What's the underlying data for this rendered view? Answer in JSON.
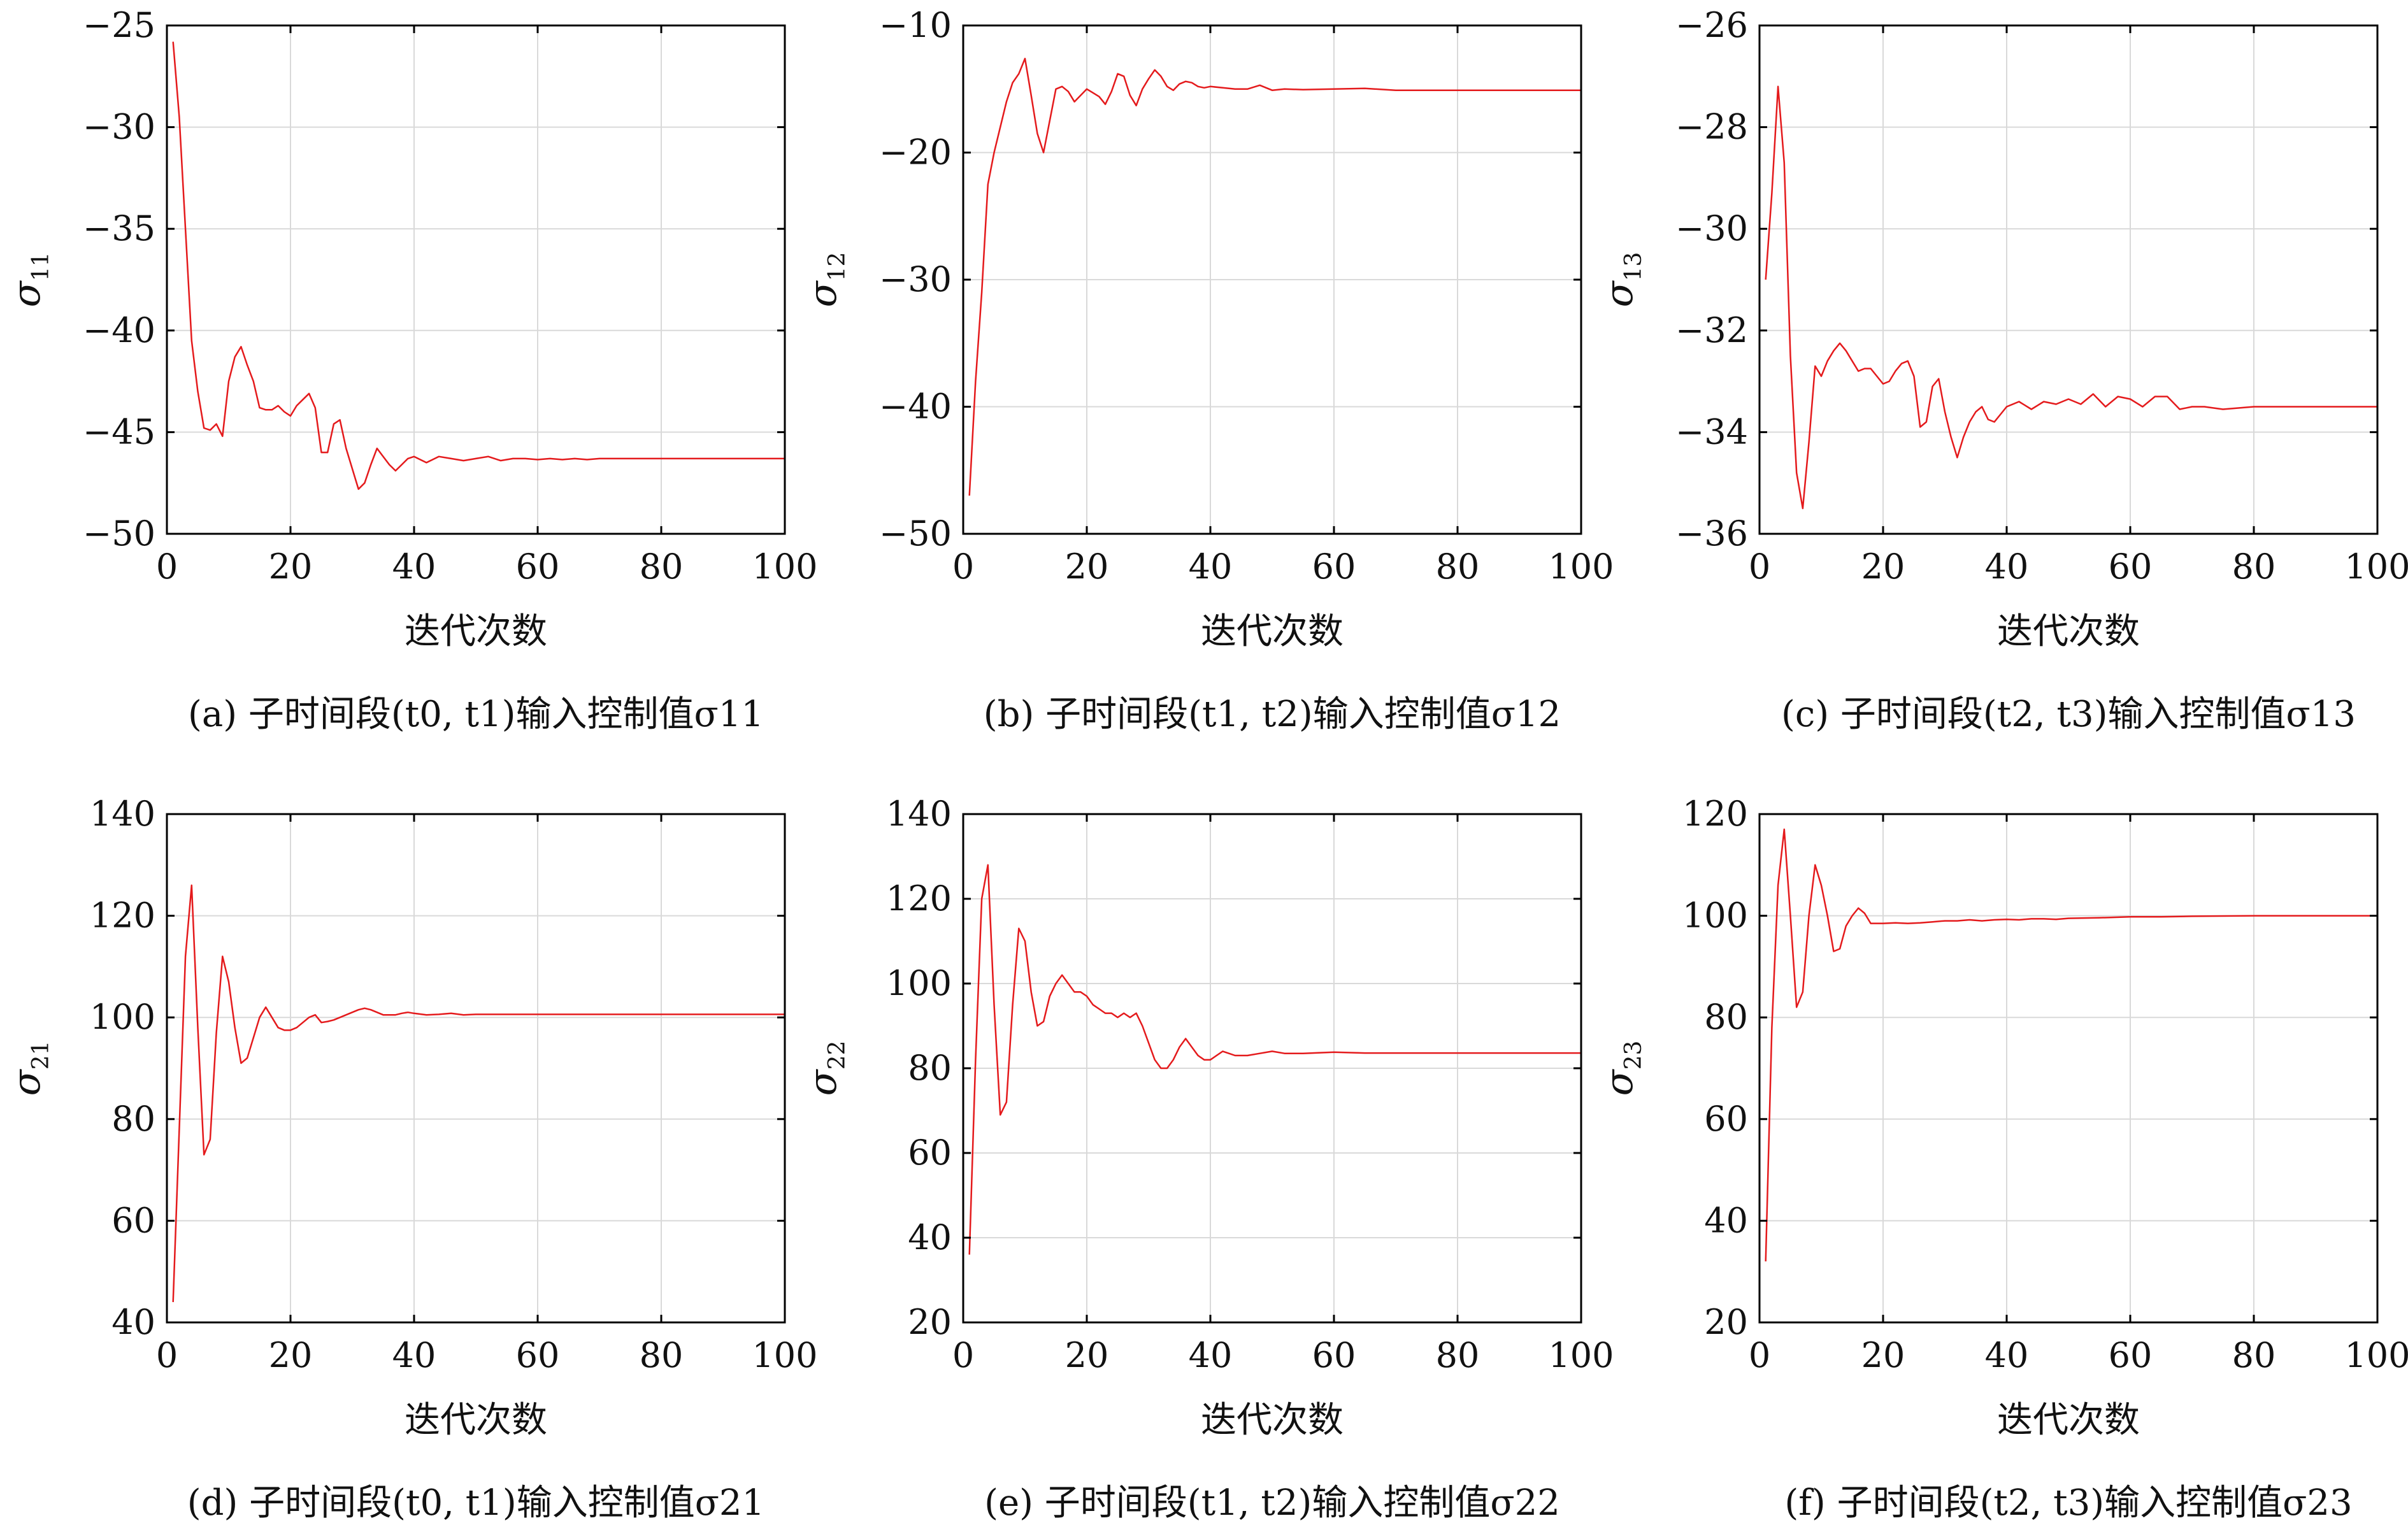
{
  "figure": {
    "series_color": "#e41a1c"
  },
  "chart_data": [
    {
      "type": "line",
      "panel": "a",
      "ylabel": "σ11",
      "xlabel": "迭代次数",
      "caption": "(a) 子时间段(t0, t1)输入控制值σ11",
      "xlim": [
        0,
        100
      ],
      "ylim": [
        -50,
        -25
      ],
      "xticks": [
        0,
        20,
        40,
        60,
        80,
        100
      ],
      "yticks": [
        -50,
        -45,
        -40,
        -35,
        -30,
        -25
      ],
      "grid": true,
      "series": [
        {
          "x": [
            1,
            2,
            3,
            4,
            5,
            6,
            7,
            8,
            9,
            10,
            11,
            12,
            13,
            14,
            15,
            16,
            17,
            18,
            19,
            20,
            21,
            22,
            23,
            24,
            25,
            26,
            27,
            28,
            29,
            30,
            31,
            32,
            33,
            34,
            35,
            36,
            37,
            38,
            39,
            40,
            42,
            44,
            46,
            48,
            50,
            52,
            54,
            56,
            58,
            60,
            62,
            64,
            66,
            68,
            70,
            75,
            80,
            85,
            90,
            95,
            100
          ],
          "y": [
            -25.8,
            -29.5,
            -35,
            -40.5,
            -43,
            -44.8,
            -44.9,
            -44.6,
            -45.2,
            -42.5,
            -41.3,
            -40.8,
            -41.7,
            -42.5,
            -43.8,
            -43.9,
            -43.9,
            -43.7,
            -44,
            -44.2,
            -43.7,
            -43.4,
            -43.1,
            -43.8,
            -46,
            -46,
            -44.6,
            -44.4,
            -45.8,
            -46.8,
            -47.8,
            -47.5,
            -46.6,
            -45.8,
            -46.2,
            -46.6,
            -46.9,
            -46.6,
            -46.3,
            -46.2,
            -46.5,
            -46.2,
            -46.3,
            -46.4,
            -46.3,
            -46.2,
            -46.4,
            -46.3,
            -46.3,
            -46.35,
            -46.3,
            -46.35,
            -46.3,
            -46.35,
            -46.3,
            -46.3,
            -46.3,
            -46.3,
            -46.3,
            -46.3,
            -46.3
          ]
        }
      ]
    },
    {
      "type": "line",
      "panel": "b",
      "ylabel": "σ12",
      "xlabel": "迭代次数",
      "caption": "(b) 子时间段(t1, t2)输入控制值σ12",
      "xlim": [
        0,
        100
      ],
      "ylim": [
        -50,
        -10
      ],
      "xticks": [
        0,
        20,
        40,
        60,
        80,
        100
      ],
      "yticks": [
        -50,
        -40,
        -30,
        -20,
        -10
      ],
      "grid": true,
      "series": [
        {
          "x": [
            1,
            2,
            3,
            4,
            5,
            6,
            7,
            8,
            9,
            10,
            11,
            12,
            13,
            14,
            15,
            16,
            17,
            18,
            19,
            20,
            21,
            22,
            23,
            24,
            25,
            26,
            27,
            28,
            29,
            30,
            31,
            32,
            33,
            34,
            35,
            36,
            37,
            38,
            39,
            40,
            42,
            44,
            46,
            48,
            50,
            52,
            55,
            60,
            65,
            70,
            80,
            90,
            100
          ],
          "y": [
            -47,
            -38,
            -31,
            -22.5,
            -20,
            -18,
            -16,
            -14.5,
            -13.8,
            -12.6,
            -15.5,
            -18.5,
            -20,
            -17.5,
            -15,
            -14.8,
            -15.2,
            -16,
            -15.5,
            -15,
            -15.3,
            -15.6,
            -16.2,
            -15.2,
            -13.8,
            -14,
            -15.5,
            -16.3,
            -15,
            -14.2,
            -13.5,
            -14,
            -14.8,
            -15.1,
            -14.6,
            -14.4,
            -14.5,
            -14.8,
            -14.9,
            -14.8,
            -14.9,
            -15,
            -15,
            -14.7,
            -15.1,
            -15,
            -15.05,
            -15,
            -14.95,
            -15.1,
            -15.1,
            -15.1,
            -15.1
          ]
        }
      ]
    },
    {
      "type": "line",
      "panel": "c",
      "ylabel": "σ13",
      "xlabel": "迭代次数",
      "caption": "(c) 子时间段(t2, t3)输入控制值σ13",
      "xlim": [
        0,
        100
      ],
      "ylim": [
        -36,
        -26
      ],
      "xticks": [
        0,
        20,
        40,
        60,
        80,
        100
      ],
      "yticks": [
        -36,
        -34,
        -32,
        -30,
        -28,
        -26
      ],
      "grid": true,
      "series": [
        {
          "x": [
            1,
            2,
            3,
            4,
            5,
            6,
            7,
            8,
            9,
            10,
            11,
            12,
            13,
            14,
            15,
            16,
            17,
            18,
            19,
            20,
            21,
            22,
            23,
            24,
            25,
            26,
            27,
            28,
            29,
            30,
            31,
            32,
            33,
            34,
            35,
            36,
            37,
            38,
            39,
            40,
            42,
            44,
            46,
            48,
            50,
            52,
            54,
            56,
            58,
            60,
            62,
            64,
            66,
            68,
            70,
            72,
            75,
            80,
            85,
            90,
            95,
            100
          ],
          "y": [
            -31,
            -29.3,
            -27.2,
            -28.7,
            -32.5,
            -34.8,
            -35.5,
            -34.2,
            -32.7,
            -32.9,
            -32.6,
            -32.4,
            -32.25,
            -32.4,
            -32.6,
            -32.8,
            -32.75,
            -32.75,
            -32.9,
            -33.05,
            -33,
            -32.8,
            -32.65,
            -32.6,
            -32.9,
            -33.9,
            -33.8,
            -33.1,
            -32.95,
            -33.6,
            -34.1,
            -34.5,
            -34.1,
            -33.8,
            -33.6,
            -33.5,
            -33.75,
            -33.8,
            -33.65,
            -33.5,
            -33.4,
            -33.55,
            -33.4,
            -33.45,
            -33.35,
            -33.45,
            -33.25,
            -33.5,
            -33.3,
            -33.35,
            -33.5,
            -33.3,
            -33.3,
            -33.55,
            -33.5,
            -33.5,
            -33.55,
            -33.5,
            -33.5,
            -33.5,
            -33.5,
            -33.5
          ]
        }
      ]
    },
    {
      "type": "line",
      "panel": "d",
      "ylabel": "σ21",
      "xlabel": "迭代次数",
      "caption": "(d) 子时间段(t0, t1)输入控制值σ21",
      "xlim": [
        0,
        100
      ],
      "ylim": [
        40,
        140
      ],
      "xticks": [
        0,
        20,
        40,
        60,
        80,
        100
      ],
      "yticks": [
        40,
        60,
        80,
        100,
        120,
        140
      ],
      "grid": true,
      "series": [
        {
          "x": [
            1,
            2,
            3,
            4,
            5,
            6,
            7,
            8,
            9,
            10,
            11,
            12,
            13,
            14,
            15,
            16,
            17,
            18,
            19,
            20,
            21,
            22,
            23,
            24,
            25,
            26,
            27,
            28,
            29,
            30,
            31,
            32,
            33,
            34,
            35,
            36,
            37,
            38,
            39,
            40,
            42,
            44,
            46,
            48,
            50,
            55,
            60,
            65,
            70,
            80,
            90,
            100
          ],
          "y": [
            44,
            78,
            112,
            126,
            98,
            73,
            76,
            97,
            112,
            107,
            98,
            91,
            92,
            96,
            100,
            102,
            100,
            98,
            97.5,
            97.5,
            98,
            99,
            100,
            100.5,
            99,
            99.2,
            99.5,
            100,
            100.5,
            101,
            101.5,
            101.8,
            101.5,
            101,
            100.5,
            100.5,
            100.5,
            100.8,
            101,
            100.8,
            100.5,
            100.6,
            100.8,
            100.5,
            100.6,
            100.6,
            100.6,
            100.6,
            100.6,
            100.6,
            100.6,
            100.6
          ]
        }
      ]
    },
    {
      "type": "line",
      "panel": "e",
      "ylabel": "σ22",
      "xlabel": "迭代次数",
      "caption": "(e) 子时间段(t1, t2)输入控制值σ22",
      "xlim": [
        0,
        100
      ],
      "ylim": [
        20,
        140
      ],
      "xticks": [
        0,
        20,
        40,
        60,
        80,
        100
      ],
      "yticks": [
        20,
        40,
        60,
        80,
        100,
        120,
        140
      ],
      "grid": true,
      "series": [
        {
          "x": [
            1,
            2,
            3,
            4,
            5,
            6,
            7,
            8,
            9,
            10,
            11,
            12,
            13,
            14,
            15,
            16,
            17,
            18,
            19,
            20,
            21,
            22,
            23,
            24,
            25,
            26,
            27,
            28,
            29,
            30,
            31,
            32,
            33,
            34,
            35,
            36,
            37,
            38,
            39,
            40,
            42,
            44,
            46,
            48,
            50,
            52,
            55,
            60,
            65,
            70,
            80,
            90,
            100
          ],
          "y": [
            36,
            82,
            120,
            128,
            95,
            69,
            72,
            95,
            113,
            110,
            98,
            90,
            91,
            97,
            100,
            102,
            100,
            98,
            98,
            97,
            95,
            94,
            93,
            93,
            92,
            93,
            92,
            93,
            90,
            86,
            82,
            80,
            80,
            82,
            85,
            87,
            85,
            83,
            82,
            82,
            84,
            83,
            83,
            83.5,
            84,
            83.5,
            83.5,
            83.8,
            83.6,
            83.6,
            83.6,
            83.6,
            83.6
          ]
        }
      ]
    },
    {
      "type": "line",
      "panel": "f",
      "ylabel": "σ23",
      "xlabel": "迭代次数",
      "caption": "(f) 子时间段(t2, t3)输入控制值σ23",
      "xlim": [
        0,
        100
      ],
      "ylim": [
        20,
        120
      ],
      "xticks": [
        0,
        20,
        40,
        60,
        80,
        100
      ],
      "yticks": [
        20,
        40,
        60,
        80,
        100,
        120
      ],
      "grid": true,
      "series": [
        {
          "x": [
            1,
            2,
            3,
            4,
            5,
            6,
            7,
            8,
            9,
            10,
            11,
            12,
            13,
            14,
            15,
            16,
            17,
            18,
            19,
            20,
            22,
            24,
            26,
            28,
            30,
            32,
            34,
            36,
            38,
            40,
            42,
            44,
            46,
            48,
            50,
            55,
            60,
            65,
            70,
            80,
            90,
            100
          ],
          "y": [
            32,
            78,
            106,
            117,
            100,
            82,
            85,
            100,
            110,
            106,
            100,
            93,
            93.5,
            98,
            100,
            101.5,
            100.5,
            98.5,
            98.5,
            98.5,
            98.6,
            98.5,
            98.6,
            98.8,
            99,
            99,
            99.2,
            99,
            99.2,
            99.3,
            99.2,
            99.4,
            99.4,
            99.3,
            99.5,
            99.6,
            99.8,
            99.8,
            99.9,
            100,
            100,
            100
          ]
        }
      ]
    }
  ]
}
